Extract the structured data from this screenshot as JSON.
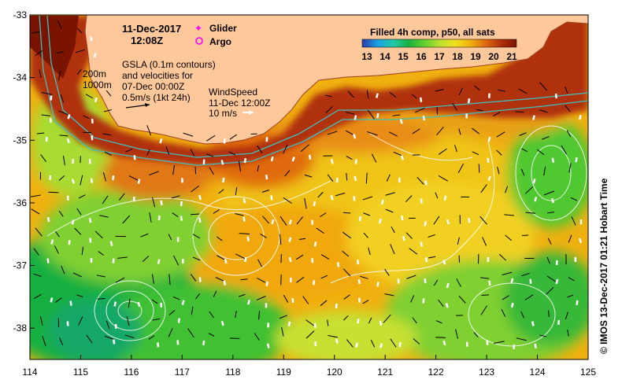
{
  "map": {
    "lon_ticks": [
      "114",
      "115",
      "116",
      "117",
      "118",
      "119",
      "120",
      "121",
      "122",
      "123",
      "124",
      "125"
    ],
    "lat_ticks": [
      "-33",
      "-34",
      "-35",
      "-36",
      "-37",
      "-38"
    ],
    "lon_range": [
      114,
      125
    ],
    "lat_range": [
      -38.5,
      -33
    ]
  },
  "header": {
    "date": "11-Dec-2017",
    "time": "12:08Z"
  },
  "legend": {
    "glider": "Glider",
    "argo": "Argo",
    "glider_color": "#ff00ff",
    "argo_color": "#ff00ff"
  },
  "gsla": {
    "line1": "GSLA (0.1m contours)",
    "line2": "and velocities for",
    "line3": "07-Dec 00:00Z",
    "line4": "0.5m/s (1kt 24h)"
  },
  "bathy": {
    "label1": "200m",
    "label2": "1000m"
  },
  "wind": {
    "label": "WindSpeed",
    "time": "11-Dec 12:00Z",
    "speed": "10 m/s"
  },
  "colorbar": {
    "title": "Filled 4h comp, p50, all sats",
    "ticks": [
      "13",
      "14",
      "15",
      "16",
      "17",
      "18",
      "19",
      "20",
      "21"
    ],
    "colors": [
      "#2a3aa8",
      "#1aa0e6",
      "#20c8a8",
      "#18b040",
      "#60d030",
      "#b8e030",
      "#f0e020",
      "#f0b010",
      "#e06a10",
      "#b03008",
      "#7a1400"
    ]
  },
  "credit": "© IMOS 13-Dec-2017 01:21 Hobart Time",
  "land_color": "#ffc89a"
}
